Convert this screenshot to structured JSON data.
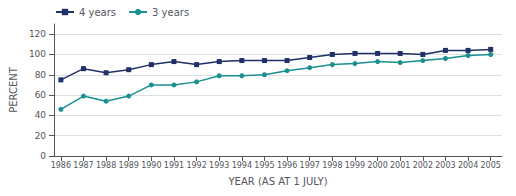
{
  "chart_data": {
    "type": "line",
    "x": [
      1986,
      1987,
      1988,
      1989,
      1990,
      1991,
      1992,
      1993,
      1994,
      1995,
      1996,
      1997,
      1998,
      1999,
      2000,
      2001,
      2002,
      2003,
      2004,
      2005
    ],
    "series": [
      {
        "name": "4 years",
        "color": "#1f3068",
        "marker": "square",
        "values": [
          75,
          86,
          82,
          85,
          90,
          93,
          90,
          93,
          94,
          94,
          94,
          97,
          100,
          101,
          101,
          101,
          100,
          104,
          104,
          105
        ]
      },
      {
        "name": "3 years",
        "color": "#1a9090",
        "marker": "circle",
        "values": [
          46,
          59,
          54,
          59,
          70,
          70,
          73,
          79,
          79,
          80,
          84,
          87,
          90,
          91,
          93,
          92,
          94,
          96,
          99,
          100
        ]
      }
    ],
    "xlabel": "YEAR (AS AT 1 JULY)",
    "ylabel": "PERCENT",
    "xlim": [
      1985.7,
      2005.5
    ],
    "xticks": [
      1986,
      1987,
      1988,
      1989,
      1990,
      1991,
      1992,
      1993,
      1994,
      1995,
      1996,
      1997,
      1998,
      1999,
      2000,
      2001,
      2002,
      2003,
      2004,
      2005
    ],
    "ylim": [
      0,
      130
    ],
    "yticks": [
      0,
      20,
      40,
      60,
      80,
      100,
      120
    ],
    "grid": "y",
    "legend": "upper left"
  }
}
